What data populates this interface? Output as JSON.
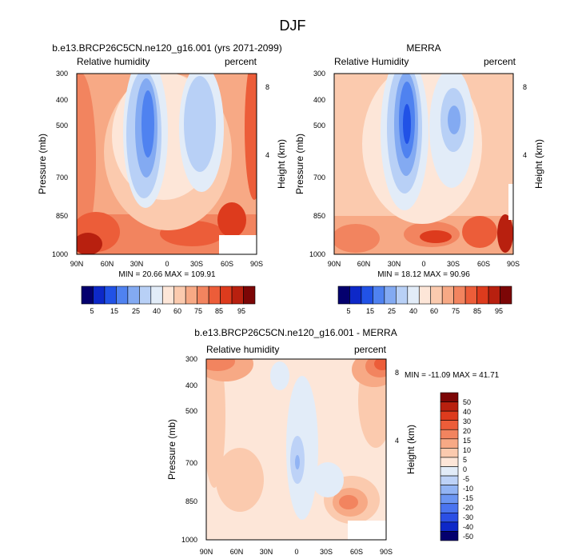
{
  "figure": {
    "title": "DJF"
  },
  "colors": {
    "abs_scale": [
      "#04006e",
      "#0d28c8",
      "#2152e6",
      "#4f82f0",
      "#83aaf2",
      "#b8d0f6",
      "#e2ecf8",
      "#fde6d8",
      "#fbcaae",
      "#f7a985",
      "#f2845f",
      "#ec5d39",
      "#dd3b1d",
      "#b8200f",
      "#7c0606"
    ],
    "diff_scale": [
      "#04006e",
      "#0d28c8",
      "#2b4fe5",
      "#4a74ef",
      "#6c96f2",
      "#92b4f4",
      "#bdd2f7",
      "#e2ecf8",
      "#fde6d8",
      "#fbcaae",
      "#f7a985",
      "#f2845f",
      "#ec5d39",
      "#dd3b1d",
      "#b8200f",
      "#7c0606"
    ],
    "frame": "#000000"
  },
  "chart_data": [
    {
      "type": "contour",
      "title": "b.e13.BRCP26C5CN.ne120_g16.001 (yrs 2071-2099)",
      "left_label": "Relative humidity",
      "right_label": "percent",
      "ylabel": "Pressure (mb)",
      "y2label": "Height (km)",
      "x_ticks": [
        "90N",
        "60N",
        "30N",
        "0",
        "30S",
        "60S",
        "90S"
      ],
      "y_ticks": [
        "300",
        "400",
        "500",
        "700",
        "850",
        "1000"
      ],
      "y2_ticks": [
        "8",
        "4"
      ],
      "stats": "MIN =  20.66   MAX = 109.91",
      "min": 20.66,
      "max": 109.91,
      "colorbar_labels": [
        "5",
        "15",
        "25",
        "40",
        "60",
        "75",
        "85",
        "95"
      ]
    },
    {
      "type": "contour",
      "title": "MERRA",
      "left_label": "Relative Humidity",
      "right_label": "percent",
      "ylabel": "Pressure (mb)",
      "y2label": "Height (km)",
      "x_ticks": [
        "90N",
        "60N",
        "30N",
        "0",
        "30S",
        "60S",
        "90S"
      ],
      "y_ticks": [
        "300",
        "400",
        "500",
        "700",
        "850",
        "1000"
      ],
      "y2_ticks": [
        "8",
        "4"
      ],
      "stats": "MIN =  18.12   MAX =  90.96",
      "min": 18.12,
      "max": 90.96,
      "colorbar_labels": [
        "5",
        "15",
        "25",
        "40",
        "60",
        "75",
        "85",
        "95"
      ]
    },
    {
      "type": "contour",
      "title": "b.e13.BRCP26C5CN.ne120_g16.001 - MERRA",
      "left_label": "Relative humidity",
      "right_label": "percent",
      "ylabel": "Pressure (mb)",
      "y2label": "Height (km)",
      "x_ticks": [
        "90N",
        "60N",
        "30N",
        "0",
        "30S",
        "60S",
        "90S"
      ],
      "y_ticks": [
        "300",
        "400",
        "500",
        "700",
        "850",
        "1000"
      ],
      "y2_ticks": [
        "8",
        "4"
      ],
      "stats": "MIN = -11.09   MAX =  41.71",
      "min": -11.09,
      "max": 41.71,
      "colorbar_labels": [
        "50",
        "40",
        "30",
        "20",
        "15",
        "10",
        "5",
        "0",
        "-5",
        "-10",
        "-15",
        "-20",
        "-30",
        "-40",
        "-50"
      ]
    }
  ]
}
